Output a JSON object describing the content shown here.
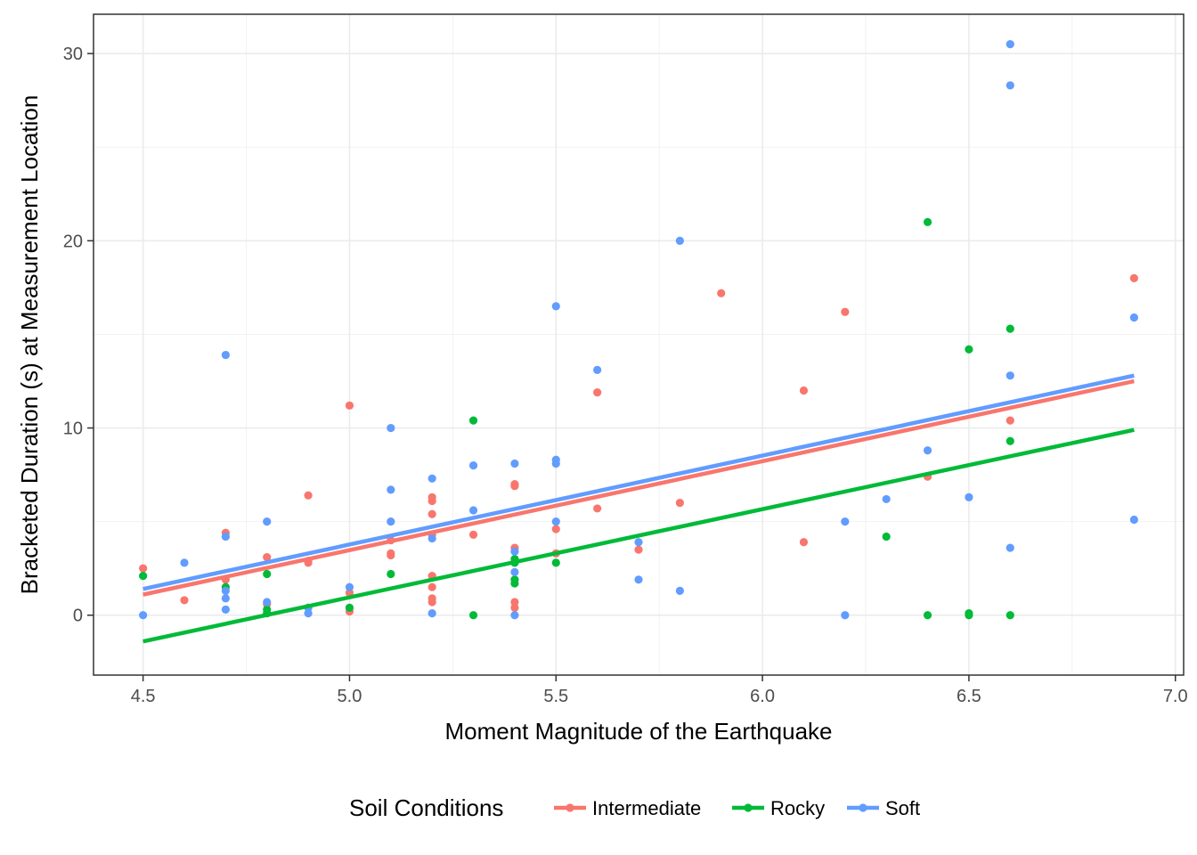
{
  "chart_data": {
    "type": "scatter",
    "xlabel": "Moment Magnitude of the Earthquake",
    "ylabel": "Bracketed Duration (s) at Measurement Location",
    "xlim": [
      4.38,
      7.02
    ],
    "ylim": [
      -3.2,
      32.1
    ],
    "x_ticks": [
      4.5,
      5.0,
      5.5,
      6.0,
      6.5,
      7.0
    ],
    "x_tick_labels": [
      "4.5",
      "5.0",
      "5.5",
      "6.0",
      "6.5",
      "7.0"
    ],
    "y_ticks": [
      0,
      10,
      20,
      30
    ],
    "y_tick_labels": [
      "0",
      "10",
      "20",
      "30"
    ],
    "grid": true,
    "legend": {
      "title": "Soil Conditions",
      "position": "bottom"
    },
    "series": [
      {
        "name": "Intermediate",
        "color": "#F8766D",
        "points": [
          [
            4.5,
            2.5
          ],
          [
            4.6,
            0.8
          ],
          [
            4.7,
            4.4
          ],
          [
            4.7,
            1.9
          ],
          [
            4.8,
            3.1
          ],
          [
            4.8,
            0.6
          ],
          [
            4.9,
            6.4
          ],
          [
            4.9,
            2.9
          ],
          [
            4.9,
            2.8
          ],
          [
            5.0,
            11.2
          ],
          [
            5.0,
            1.2
          ],
          [
            5.0,
            0.2
          ],
          [
            5.1,
            3.3
          ],
          [
            5.1,
            3.2
          ],
          [
            5.1,
            4.0
          ],
          [
            5.2,
            6.3
          ],
          [
            5.2,
            6.1
          ],
          [
            5.2,
            5.4
          ],
          [
            5.2,
            4.3
          ],
          [
            5.2,
            2.1
          ],
          [
            5.2,
            1.5
          ],
          [
            5.2,
            0.9
          ],
          [
            5.2,
            0.7
          ],
          [
            5.3,
            4.3
          ],
          [
            5.4,
            7.0
          ],
          [
            5.4,
            6.9
          ],
          [
            5.4,
            3.6
          ],
          [
            5.4,
            0.7
          ],
          [
            5.4,
            0.4
          ],
          [
            5.5,
            4.6
          ],
          [
            5.5,
            3.3
          ],
          [
            5.6,
            11.9
          ],
          [
            5.6,
            5.7
          ],
          [
            5.7,
            3.5
          ],
          [
            5.8,
            6.0
          ],
          [
            5.9,
            17.2
          ],
          [
            6.1,
            12.0
          ],
          [
            6.1,
            3.9
          ],
          [
            6.2,
            16.2
          ],
          [
            6.4,
            7.4
          ],
          [
            6.6,
            10.4
          ],
          [
            6.9,
            18.0
          ]
        ],
        "fit": [
          [
            4.5,
            1.1
          ],
          [
            6.9,
            12.5
          ]
        ]
      },
      {
        "name": "Rocky",
        "color": "#00BA38",
        "points": [
          [
            4.5,
            2.1
          ],
          [
            4.7,
            1.5
          ],
          [
            4.8,
            2.2
          ],
          [
            4.8,
            0.3
          ],
          [
            4.8,
            0.1
          ],
          [
            4.9,
            0.4
          ],
          [
            5.0,
            0.4
          ],
          [
            5.1,
            2.2
          ],
          [
            5.3,
            10.4
          ],
          [
            5.3,
            0.0
          ],
          [
            5.4,
            3.0
          ],
          [
            5.4,
            2.8
          ],
          [
            5.4,
            1.9
          ],
          [
            5.4,
            1.7
          ],
          [
            5.5,
            2.8
          ],
          [
            6.3,
            4.2
          ],
          [
            6.4,
            21.0
          ],
          [
            6.4,
            0.0
          ],
          [
            6.5,
            14.2
          ],
          [
            6.5,
            0.1
          ],
          [
            6.5,
            0.0
          ],
          [
            6.6,
            15.3
          ],
          [
            6.6,
            9.3
          ],
          [
            6.6,
            0.0
          ]
        ],
        "fit": [
          [
            4.5,
            -1.4
          ],
          [
            6.9,
            9.9
          ]
        ]
      },
      {
        "name": "Soft",
        "color": "#619CFF",
        "points": [
          [
            4.5,
            0.0
          ],
          [
            4.6,
            2.8
          ],
          [
            4.7,
            13.9
          ],
          [
            4.7,
            4.2
          ],
          [
            4.7,
            1.3
          ],
          [
            4.7,
            0.9
          ],
          [
            4.7,
            0.3
          ],
          [
            4.8,
            5.0
          ],
          [
            4.8,
            0.7
          ],
          [
            4.9,
            0.4
          ],
          [
            4.9,
            0.1
          ],
          [
            5.0,
            1.5
          ],
          [
            5.1,
            10.0
          ],
          [
            5.1,
            6.7
          ],
          [
            5.1,
            5.0
          ],
          [
            5.2,
            7.3
          ],
          [
            5.2,
            4.1
          ],
          [
            5.2,
            0.1
          ],
          [
            5.3,
            8.0
          ],
          [
            5.3,
            5.6
          ],
          [
            5.4,
            8.1
          ],
          [
            5.4,
            3.4
          ],
          [
            5.4,
            2.3
          ],
          [
            5.4,
            0.0
          ],
          [
            5.5,
            16.5
          ],
          [
            5.5,
            8.3
          ],
          [
            5.5,
            8.1
          ],
          [
            5.5,
            5.0
          ],
          [
            5.6,
            13.1
          ],
          [
            5.7,
            3.9
          ],
          [
            5.7,
            1.9
          ],
          [
            5.8,
            20.0
          ],
          [
            5.8,
            1.3
          ],
          [
            6.2,
            5.0
          ],
          [
            6.2,
            0.0
          ],
          [
            6.3,
            6.2
          ],
          [
            6.4,
            8.8
          ],
          [
            6.5,
            6.3
          ],
          [
            6.6,
            30.5
          ],
          [
            6.6,
            28.3
          ],
          [
            6.6,
            12.8
          ],
          [
            6.6,
            3.6
          ],
          [
            6.9,
            15.9
          ],
          [
            6.9,
            5.1
          ]
        ],
        "fit": [
          [
            4.5,
            1.4
          ],
          [
            6.9,
            12.8
          ]
        ]
      }
    ]
  }
}
